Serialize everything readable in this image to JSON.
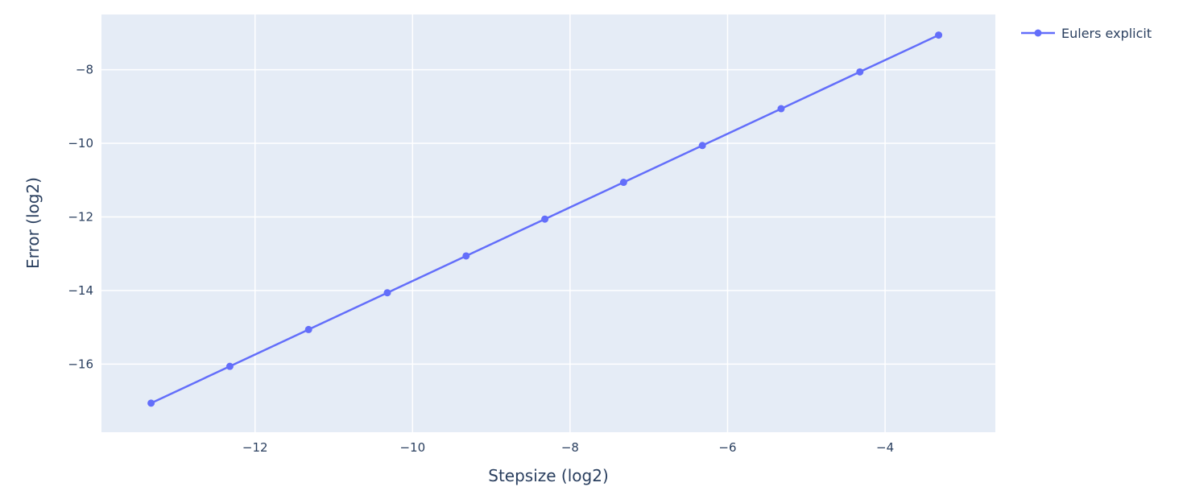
{
  "chart_data": {
    "type": "line",
    "xlabel": "Stepsize (log2)",
    "ylabel": "Error (log2)",
    "xlim": [
      -13.95,
      -2.6
    ],
    "ylim": [
      -17.85,
      -6.5
    ],
    "xticks": [
      -12,
      -10,
      -8,
      -6,
      -4
    ],
    "yticks": [
      -16,
      -14,
      -12,
      -10,
      -8
    ],
    "grid": true,
    "legend_position": "top-right",
    "background_color": "#e5ecf6",
    "series": [
      {
        "name": "Eulers explicit",
        "color": "#636efa",
        "mode": "lines+markers",
        "x": [
          -13.32,
          -12.32,
          -11.32,
          -10.32,
          -9.32,
          -8.32,
          -7.32,
          -6.32,
          -5.32,
          -4.32,
          -3.32
        ],
        "y": [
          -17.06,
          -16.06,
          -15.06,
          -14.06,
          -13.06,
          -12.06,
          -11.06,
          -10.06,
          -9.06,
          -8.06,
          -7.06
        ]
      }
    ]
  }
}
